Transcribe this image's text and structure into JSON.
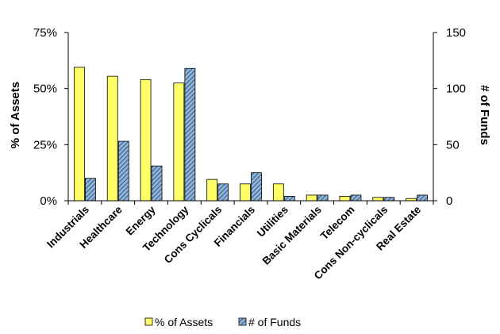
{
  "chart_data": {
    "type": "bar",
    "categories": [
      "Industrials",
      "Healthcare",
      "Energy",
      "Technology",
      "Cons Cyclicals",
      "Financials",
      "Utilities",
      "Basic Materials",
      "Telecom",
      "Cons Non-cyclicals",
      "Real Estate"
    ],
    "series": [
      {
        "name": "% of Assets",
        "axis": "left",
        "color": "#ffff66",
        "values": [
          59.5,
          55.5,
          54,
          52.5,
          9.5,
          7.5,
          7.5,
          2.5,
          2,
          1.5,
          1
        ]
      },
      {
        "name": "# of Funds",
        "axis": "right",
        "color": "#8fb3d9",
        "pattern": "diagonal-hatch",
        "values": [
          20,
          53,
          31,
          118,
          15,
          25,
          4,
          5,
          5,
          3,
          5
        ]
      }
    ],
    "ylabel": "% of Assets",
    "y2label": "# of Funds",
    "ylim": [
      0,
      75
    ],
    "y2lim": [
      0,
      150
    ],
    "yticks": [
      "0%",
      "25%",
      "50%",
      "75%"
    ],
    "y2ticks": [
      "0",
      "50",
      "100",
      "150"
    ],
    "legend_position": "bottom",
    "grid": false
  }
}
